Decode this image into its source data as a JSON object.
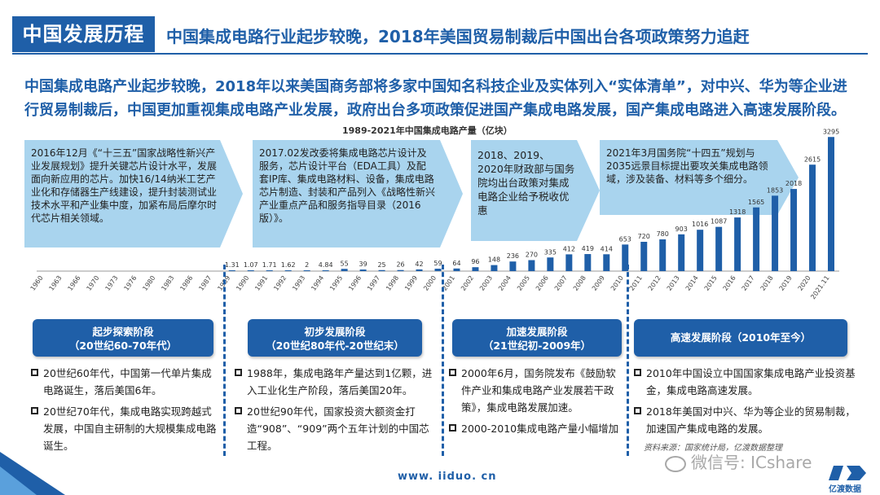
{
  "header": {
    "tag": "中国发展历程",
    "headline": "中国集成电路行业起步较晚，2018年美国贸易制裁后中国出台各项政策努力追赶"
  },
  "intro": "中国集成电路产业起步较晚，2018年以来美国商务部将多家中国知名科技企业及实体列入“实体清单”，对中兴、华为等企业进行贸易制裁后，中国更加重视集成电路产业发展，政府出台多项政策促进国产集成电路发展，国产集成电路进入高速发展阶段。",
  "callouts": [
    "2016年12月《“十三五”国家战略性新兴产业发展规划》提升关键芯片设计水平，发展面向新应用的芯片。加快16/14纳米工艺产业化和存储器生产线建设，提升封装测试业技术水平和产业集中度，加紧布局后摩尔时代芯片相关领域。",
    "2017.02发改委将集成电路芯片设计及服务，芯片设计平台（EDA工具）及配套IP库、集成电路材料、设备，集成电路芯片制造、封装和产品列入《战略性新兴产业重点产品和服务指导目录（2016版）》。",
    "2018、2019、2020年财政部与国务院均出台政策对集成电路企业给予税收优惠",
    "2021年3月国务院“十四五”规划与2035远景目标提出要攻关集成电路领域，涉及装备、材料等多个细分。"
  ],
  "stages": [
    {
      "line1": "起步探索阶段",
      "line2": "（20世纪60-70年代）"
    },
    {
      "line1": "初步发展阶段",
      "line2": "（20世纪80年代-20世纪末）"
    },
    {
      "line1": "加速发展阶段",
      "line2": "（21世纪初-2009年）"
    },
    {
      "line1": "高速发展阶段（2010年至今）",
      "line2": ""
    }
  ],
  "bullets": [
    [
      "20世纪60年代，中国第一代单片集成电路诞生，落后美国6年。",
      "20世纪70年代，集成电路实现跨越式发展，中国自主研制的大规模集成电路诞生。"
    ],
    [
      "1988年，集成电路年产量达到1亿颗，进入工业化生产阶段，落后美国20年。",
      "20世纪90年代，国家投资大额资金打造“908”、“909”两个五年计划的中国芯工程。"
    ],
    [
      "2000年6月，国务院发布《鼓励软件产业和集成电路产业发展若干政策》，集成电路发展加速。",
      "2000-2010集成电路产量小幅增加"
    ],
    [
      "2010年中国设立中国国家集成电路产业投资基金，集成电路高速发展。",
      "2018年美国对中兴、华为等企业的贸易制裁，加速国产集成电路的发展。"
    ]
  ],
  "footer": {
    "url": "www. iiduo. cn",
    "source": "资料来源：国家统计局，亿渡数据整理",
    "watermark": "微信号: ICshare",
    "logo_text": "亿渡数据"
  },
  "colors": {
    "brand": "#1f5fa8",
    "callout": "#a9d4ee",
    "bar": "#1f5fa8"
  },
  "chart_data": {
    "type": "bar",
    "title": "1989-2021年中国集成电路产量（亿块）",
    "categories": [
      "1960",
      "1963",
      "1966",
      "1970",
      "1973",
      "1976",
      "1980",
      "1983",
      "1986",
      "1987",
      "1989",
      "1990",
      "1991",
      "1992",
      "1993",
      "1994",
      "1995",
      "1996",
      "1997",
      "1998",
      "1999",
      "2000",
      "2001",
      "2002",
      "2003",
      "2004",
      "2005",
      "2006",
      "2007",
      "2008",
      "2009",
      "2010",
      "2011",
      "2012",
      "2013",
      "2014",
      "2015",
      "2016",
      "2017",
      "2018",
      "2019",
      "2020",
      "2021.11"
    ],
    "values": [
      null,
      null,
      null,
      null,
      null,
      null,
      null,
      null,
      null,
      null,
      1.31,
      1.07,
      1.71,
      1.62,
      2,
      4.84,
      55,
      39,
      25,
      26,
      42,
      59,
      64,
      96,
      148,
      236,
      270,
      335,
      412,
      419,
      414,
      653,
      720,
      780,
      903,
      1016,
      1087,
      1318,
      1565,
      1853,
      2018,
      2615,
      3295
    ],
    "value_labels": [
      null,
      null,
      null,
      null,
      null,
      null,
      null,
      null,
      null,
      null,
      "1.31",
      "1.07",
      "1.71",
      "1.62",
      "2",
      "4.84",
      "55",
      "39",
      "25",
      "26",
      "42",
      "59",
      "64",
      "96",
      "148",
      "236",
      "270",
      "335",
      "412",
      "419",
      "414",
      "653",
      "720",
      "780",
      "903",
      "1016",
      "1087",
      "1318",
      "1565",
      "1853",
      "2018",
      "2615",
      "3295"
    ],
    "ylim": [
      0,
      3400
    ]
  }
}
